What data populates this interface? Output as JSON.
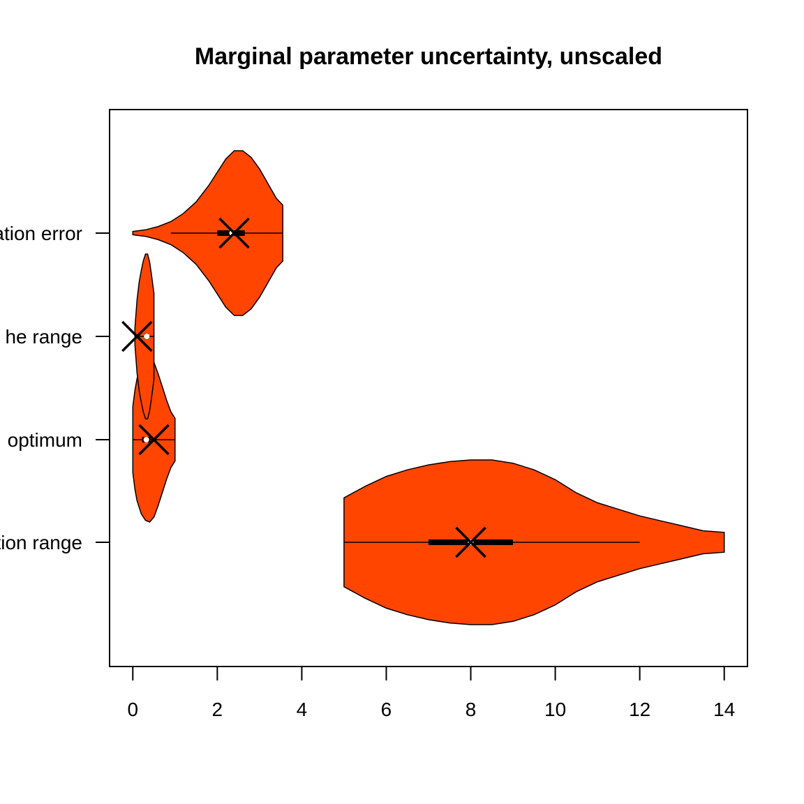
{
  "chart_data": {
    "type": "violin",
    "orientation": "horizontal",
    "title": "Marginal parameter uncertainty, unscaled",
    "xlabel": "",
    "ylabel": "",
    "xlim": [
      -0.55,
      14.55
    ],
    "x_ticks": [
      0,
      2,
      4,
      6,
      8,
      10,
      12,
      14
    ],
    "categories": [
      "tion range",
      "optimum",
      "he range",
      "ation error"
    ],
    "fill_color": "#FF4500",
    "violins": [
      {
        "label": "tion range",
        "min": 5.0,
        "max": 14.0,
        "q1": 7.0,
        "median": 8.0,
        "q3": 9.0,
        "whisker_low": 5.0,
        "whisker_high": 12.0,
        "marker_x": 8.0,
        "density": [
          [
            5.0,
            0.27
          ],
          [
            5.5,
            0.34
          ],
          [
            6.0,
            0.4
          ],
          [
            6.5,
            0.44
          ],
          [
            7.0,
            0.47
          ],
          [
            7.5,
            0.49
          ],
          [
            8.0,
            0.5
          ],
          [
            8.5,
            0.5
          ],
          [
            9.0,
            0.48
          ],
          [
            9.5,
            0.44
          ],
          [
            10.0,
            0.38
          ],
          [
            10.5,
            0.3
          ],
          [
            11.0,
            0.24
          ],
          [
            11.5,
            0.2
          ],
          [
            12.0,
            0.16
          ],
          [
            12.5,
            0.13
          ],
          [
            13.0,
            0.1
          ],
          [
            13.5,
            0.07
          ],
          [
            14.0,
            0.06
          ]
        ]
      },
      {
        "label": "optimum",
        "min": 0.0,
        "max": 1.0,
        "q1": 0.22,
        "median": 0.32,
        "q3": 0.42,
        "whisker_low": 0.0,
        "whisker_high": 1.0,
        "marker_x": 0.5,
        "density": [
          [
            0.0,
            0.2
          ],
          [
            0.05,
            0.3
          ],
          [
            0.1,
            0.37
          ],
          [
            0.2,
            0.45
          ],
          [
            0.3,
            0.49
          ],
          [
            0.4,
            0.5
          ],
          [
            0.5,
            0.47
          ],
          [
            0.6,
            0.4
          ],
          [
            0.7,
            0.32
          ],
          [
            0.8,
            0.24
          ],
          [
            0.9,
            0.17
          ],
          [
            1.0,
            0.13
          ]
        ]
      },
      {
        "label": "he range",
        "min": 0.05,
        "max": 0.5,
        "q1": 0.28,
        "median": 0.33,
        "q3": 0.37,
        "whisker_low": 0.05,
        "whisker_high": 0.5,
        "marker_x": 0.1,
        "density": [
          [
            0.05,
            0.05
          ],
          [
            0.1,
            0.22
          ],
          [
            0.15,
            0.33
          ],
          [
            0.2,
            0.4
          ],
          [
            0.25,
            0.46
          ],
          [
            0.3,
            0.5
          ],
          [
            0.35,
            0.5
          ],
          [
            0.4,
            0.45
          ],
          [
            0.45,
            0.36
          ],
          [
            0.5,
            0.26
          ]
        ]
      },
      {
        "label": "ation error",
        "min": 0.0,
        "max": 3.55,
        "q1": 2.0,
        "median": 2.35,
        "q3": 2.65,
        "whisker_low": 0.9,
        "whisker_high": 3.55,
        "marker_x": 2.4,
        "density": [
          [
            0.0,
            0.01
          ],
          [
            0.3,
            0.02
          ],
          [
            0.6,
            0.04
          ],
          [
            0.9,
            0.07
          ],
          [
            1.2,
            0.12
          ],
          [
            1.5,
            0.19
          ],
          [
            1.8,
            0.29
          ],
          [
            2.0,
            0.37
          ],
          [
            2.2,
            0.45
          ],
          [
            2.4,
            0.5
          ],
          [
            2.6,
            0.5
          ],
          [
            2.8,
            0.46
          ],
          [
            3.0,
            0.39
          ],
          [
            3.2,
            0.3
          ],
          [
            3.4,
            0.21
          ],
          [
            3.55,
            0.17
          ]
        ]
      }
    ]
  }
}
